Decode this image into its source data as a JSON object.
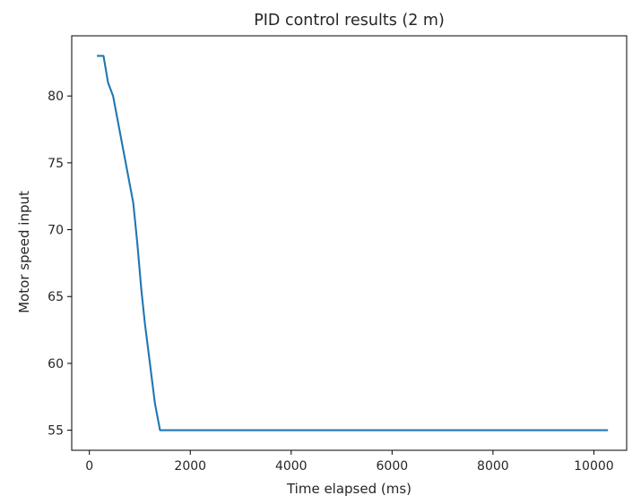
{
  "chart_data": {
    "type": "line",
    "title": "PID control results (2 m)",
    "xlabel": "Time elapsed (ms)",
    "ylabel": "Motor speed input",
    "xlim": [
      -350,
      10650
    ],
    "ylim": [
      53.5,
      84.5
    ],
    "x_ticks": [
      0,
      2000,
      4000,
      6000,
      8000,
      10000
    ],
    "x_tick_labels": [
      "0",
      "2000",
      "4000",
      "6000",
      "8000",
      "10000"
    ],
    "y_ticks": [
      55,
      60,
      65,
      70,
      75,
      80
    ],
    "y_tick_labels": [
      "55",
      "60",
      "65",
      "70",
      "75",
      "80"
    ],
    "grid": false,
    "legend": "none",
    "series": [
      {
        "color": "#1f77b4",
        "x": [
          150,
          280,
          370,
          470,
          570,
          670,
          770,
          870,
          950,
          1030,
          1100,
          1200,
          1300,
          1400,
          1500,
          2000,
          4000,
          6000,
          8000,
          10280
        ],
        "y": [
          83,
          83,
          81,
          80,
          78,
          76,
          74,
          72,
          69,
          65.5,
          63,
          60,
          57,
          55,
          55,
          55,
          55,
          55,
          55,
          55
        ]
      }
    ]
  }
}
